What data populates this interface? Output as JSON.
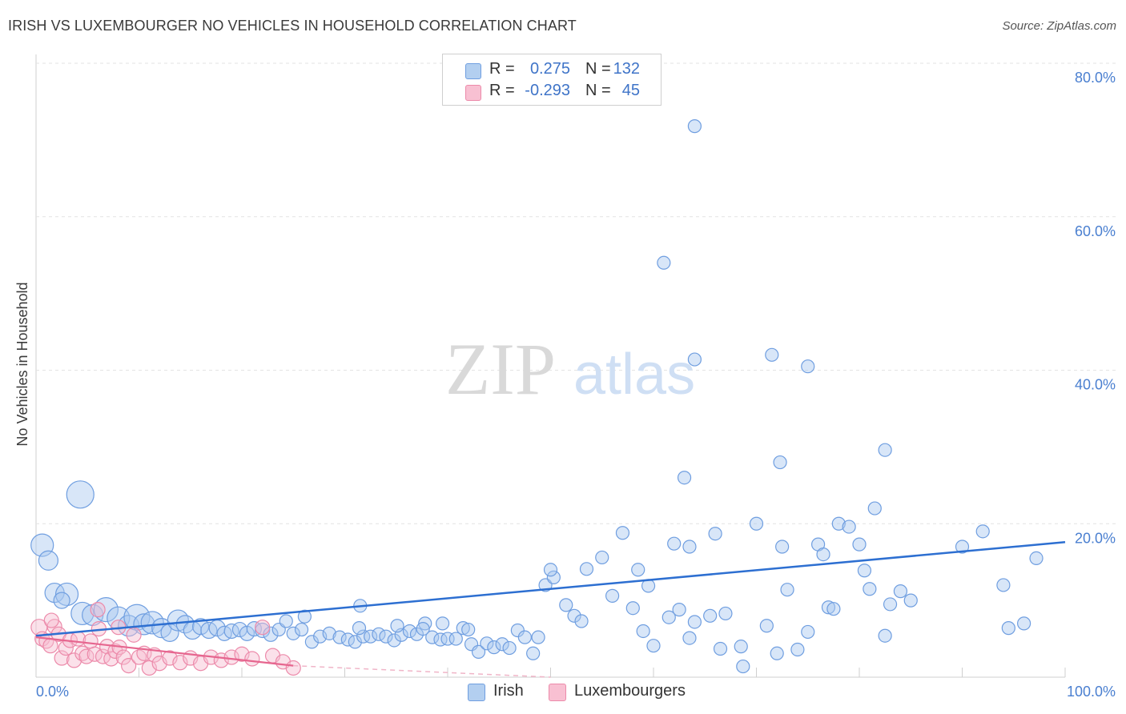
{
  "title": "IRISH VS LUXEMBOURGER NO VEHICLES IN HOUSEHOLD CORRELATION CHART",
  "source": "Source: ZipAtlas.com",
  "watermark": {
    "zip": "ZIP",
    "atlas": "atlas"
  },
  "legend": {
    "r_label": "R =",
    "n_label": "N =",
    "rows": [
      {
        "r": "0.275",
        "n": "132",
        "color": "#6f9ee0"
      },
      {
        "r": "-0.293",
        "n": "45",
        "color": "#ec8aaa"
      }
    ]
  },
  "bottom_legend": {
    "irish": "Irish",
    "luxembourgers": "Luxembourgers"
  },
  "chart_data": {
    "type": "scatter",
    "ylabel": "No Vehicles in Household",
    "xlim": [
      0,
      100
    ],
    "ylim": [
      0,
      80
    ],
    "x_tick_labels": [
      "0.0%",
      "100.0%"
    ],
    "y_tick_labels": [
      "20.0%",
      "40.0%",
      "60.0%",
      "80.0%"
    ],
    "y_tick_values": [
      20,
      40,
      60,
      80
    ],
    "grid": true,
    "colors": {
      "irish": "#6f9ee0",
      "luxembourgers": "#ec8aaa"
    },
    "series": [
      {
        "name": "Irish",
        "trend": [
          [
            0,
            5.4
          ],
          [
            100,
            17.6
          ]
        ],
        "points": [
          [
            0.6,
            17.2,
            14
          ],
          [
            1.2,
            15.2,
            12
          ],
          [
            4.3,
            23.8,
            17
          ],
          [
            1.8,
            11.0,
            12
          ],
          [
            3.0,
            10.8,
            14
          ],
          [
            2.5,
            10.0,
            10
          ],
          [
            4.5,
            8.3,
            14
          ],
          [
            5.5,
            8.1,
            13
          ],
          [
            6.8,
            8.8,
            15
          ],
          [
            8.0,
            7.7,
            14
          ],
          [
            9.0,
            6.7,
            13
          ],
          [
            9.8,
            7.8,
            16
          ],
          [
            10.5,
            6.9,
            13
          ],
          [
            11.3,
            7.1,
            14
          ],
          [
            12.2,
            6.4,
            12
          ],
          [
            13.0,
            5.8,
            11
          ],
          [
            13.8,
            7.4,
            13
          ],
          [
            14.5,
            6.9,
            11
          ],
          [
            15.2,
            6.1,
            11
          ],
          [
            16.0,
            6.6,
            10
          ],
          [
            16.8,
            6.1,
            10
          ],
          [
            17.6,
            6.4,
            10
          ],
          [
            18.3,
            5.7,
            9
          ],
          [
            19.0,
            6.0,
            9
          ],
          [
            19.8,
            6.2,
            9
          ],
          [
            20.5,
            5.7,
            9
          ],
          [
            21.2,
            6.3,
            9
          ],
          [
            22.0,
            6.1,
            9
          ],
          [
            22.8,
            5.6,
            9
          ],
          [
            23.6,
            6.2,
            8
          ],
          [
            24.3,
            7.3,
            8
          ],
          [
            25.0,
            5.7,
            8
          ],
          [
            25.8,
            6.2,
            8
          ],
          [
            26.8,
            4.6,
            8
          ],
          [
            27.6,
            5.3,
            8
          ],
          [
            28.5,
            5.7,
            8
          ],
          [
            29.5,
            5.2,
            8
          ],
          [
            30.3,
            4.9,
            8
          ],
          [
            31.0,
            4.6,
            8
          ],
          [
            31.8,
            5.3,
            8
          ],
          [
            32.5,
            5.3,
            8
          ],
          [
            33.3,
            5.6,
            8
          ],
          [
            34.0,
            5.3,
            8
          ],
          [
            34.8,
            4.8,
            8
          ],
          [
            35.5,
            5.5,
            8
          ],
          [
            36.3,
            6.0,
            8
          ],
          [
            37.0,
            5.6,
            8
          ],
          [
            37.8,
            7.0,
            8
          ],
          [
            38.5,
            5.2,
            8
          ],
          [
            39.3,
            4.9,
            8
          ],
          [
            40.0,
            5.0,
            8
          ],
          [
            40.8,
            5.0,
            8
          ],
          [
            41.5,
            6.4,
            8
          ],
          [
            42.3,
            4.3,
            8
          ],
          [
            43.0,
            3.3,
            8
          ],
          [
            43.8,
            4.4,
            8
          ],
          [
            44.5,
            3.9,
            8
          ],
          [
            45.3,
            4.3,
            8
          ],
          [
            46.0,
            3.8,
            8
          ],
          [
            46.8,
            6.1,
            8
          ],
          [
            47.5,
            5.2,
            8
          ],
          [
            48.3,
            3.1,
            8
          ],
          [
            48.8,
            5.2,
            8
          ],
          [
            26.1,
            7.9,
            8
          ],
          [
            31.4,
            6.4,
            8
          ],
          [
            35.1,
            6.7,
            8
          ],
          [
            37.6,
            6.3,
            8
          ],
          [
            39.5,
            7.0,
            8
          ],
          [
            42.0,
            6.2,
            8
          ],
          [
            31.5,
            9.3,
            8
          ],
          [
            49.5,
            12.0,
            8
          ],
          [
            50.3,
            13.0,
            8
          ],
          [
            50.0,
            14.0,
            8
          ],
          [
            51.5,
            9.4,
            8
          ],
          [
            52.3,
            8.0,
            8
          ],
          [
            53.0,
            7.3,
            8
          ],
          [
            53.5,
            14.1,
            8
          ],
          [
            55.0,
            15.6,
            8
          ],
          [
            56.0,
            10.6,
            8
          ],
          [
            57.0,
            18.8,
            8
          ],
          [
            58.0,
            9.0,
            8
          ],
          [
            58.5,
            14.0,
            8
          ],
          [
            59.0,
            6.0,
            8
          ],
          [
            59.5,
            11.9,
            8
          ],
          [
            60.0,
            4.1,
            8
          ],
          [
            61.5,
            7.8,
            8
          ],
          [
            62.0,
            17.4,
            8
          ],
          [
            62.5,
            8.8,
            8
          ],
          [
            63.5,
            5.1,
            8
          ],
          [
            63.5,
            17.0,
            8
          ],
          [
            64.0,
            7.2,
            8
          ],
          [
            65.5,
            8.0,
            8
          ],
          [
            66.0,
            18.7,
            8
          ],
          [
            66.5,
            3.7,
            8
          ],
          [
            67.0,
            8.3,
            8
          ],
          [
            68.5,
            4.0,
            8
          ],
          [
            68.7,
            1.4,
            8
          ],
          [
            70.0,
            20.0,
            8
          ],
          [
            71.0,
            6.7,
            8
          ],
          [
            72.0,
            3.1,
            8
          ],
          [
            72.5,
            17.0,
            8
          ],
          [
            73.0,
            11.4,
            8
          ],
          [
            74.0,
            3.6,
            8
          ],
          [
            75.0,
            5.9,
            8
          ],
          [
            76.0,
            17.3,
            8
          ],
          [
            76.5,
            16.0,
            8
          ],
          [
            77.0,
            9.1,
            8
          ],
          [
            77.5,
            8.9,
            8
          ],
          [
            82.5,
            5.4,
            8
          ],
          [
            83.0,
            9.5,
            8
          ],
          [
            84.0,
            11.2,
            8
          ],
          [
            85.0,
            10.0,
            8
          ],
          [
            90.0,
            17.0,
            8
          ],
          [
            94.0,
            12.0,
            8
          ],
          [
            94.5,
            6.4,
            8
          ],
          [
            96.0,
            7.0,
            8
          ],
          [
            97.2,
            15.5,
            8
          ],
          [
            78.0,
            20.0,
            8
          ],
          [
            79.0,
            19.6,
            8
          ],
          [
            80.0,
            17.3,
            8
          ],
          [
            80.5,
            13.9,
            8
          ],
          [
            81.0,
            11.5,
            8
          ],
          [
            81.5,
            22.0,
            8
          ],
          [
            82.5,
            29.6,
            8
          ],
          [
            63.0,
            26.0,
            8
          ],
          [
            72.3,
            28.0,
            8
          ],
          [
            71.5,
            42.0,
            8
          ],
          [
            64.0,
            41.4,
            8
          ],
          [
            61.0,
            54.0,
            8
          ],
          [
            64.0,
            71.8,
            8
          ],
          [
            75.0,
            40.5,
            8
          ],
          [
            92.0,
            19.0,
            8
          ]
        ]
      },
      {
        "name": "Luxembourgers",
        "trend": [
          [
            0,
            5.2
          ],
          [
            25,
            1.5
          ]
        ],
        "trend_dashed": [
          [
            25,
            1.5
          ],
          [
            50,
            -2.4
          ]
        ],
        "points": [
          [
            0.3,
            6.5,
            10
          ],
          [
            0.6,
            5.0,
            9
          ],
          [
            1.0,
            4.7,
            9
          ],
          [
            1.4,
            4.1,
            9
          ],
          [
            1.8,
            6.6,
            9
          ],
          [
            2.2,
            5.6,
            9
          ],
          [
            2.5,
            2.5,
            9
          ],
          [
            2.9,
            3.8,
            9
          ],
          [
            3.3,
            4.8,
            9
          ],
          [
            3.7,
            2.2,
            9
          ],
          [
            4.1,
            5.0,
            9
          ],
          [
            4.5,
            3.1,
            9
          ],
          [
            4.9,
            2.7,
            9
          ],
          [
            5.3,
            4.7,
            9
          ],
          [
            5.7,
            3.0,
            9
          ],
          [
            6.1,
            6.3,
            9
          ],
          [
            6.5,
            2.7,
            9
          ],
          [
            6.9,
            4.0,
            9
          ],
          [
            7.3,
            2.4,
            9
          ],
          [
            7.7,
            3.4,
            9
          ],
          [
            8.1,
            3.9,
            9
          ],
          [
            8.5,
            2.6,
            9
          ],
          [
            9.0,
            1.5,
            9
          ],
          [
            9.5,
            5.5,
            9
          ],
          [
            10.0,
            2.6,
            9
          ],
          [
            10.5,
            3.1,
            9
          ],
          [
            11.0,
            1.2,
            9
          ],
          [
            11.5,
            2.9,
            9
          ],
          [
            12.0,
            1.8,
            9
          ],
          [
            13.0,
            2.5,
            9
          ],
          [
            14.0,
            1.9,
            9
          ],
          [
            15.0,
            2.5,
            9
          ],
          [
            16.0,
            1.8,
            9
          ],
          [
            17.0,
            2.6,
            9
          ],
          [
            18.0,
            2.2,
            9
          ],
          [
            19.0,
            2.6,
            9
          ],
          [
            20.0,
            3.0,
            9
          ],
          [
            21.0,
            2.4,
            9
          ],
          [
            22.0,
            6.5,
            9
          ],
          [
            23.0,
            2.8,
            9
          ],
          [
            24.0,
            2.0,
            9
          ],
          [
            25.0,
            1.2,
            9
          ],
          [
            6.0,
            8.8,
            9
          ],
          [
            1.5,
            7.4,
            9
          ],
          [
            8.0,
            6.5,
            9
          ]
        ]
      }
    ]
  }
}
